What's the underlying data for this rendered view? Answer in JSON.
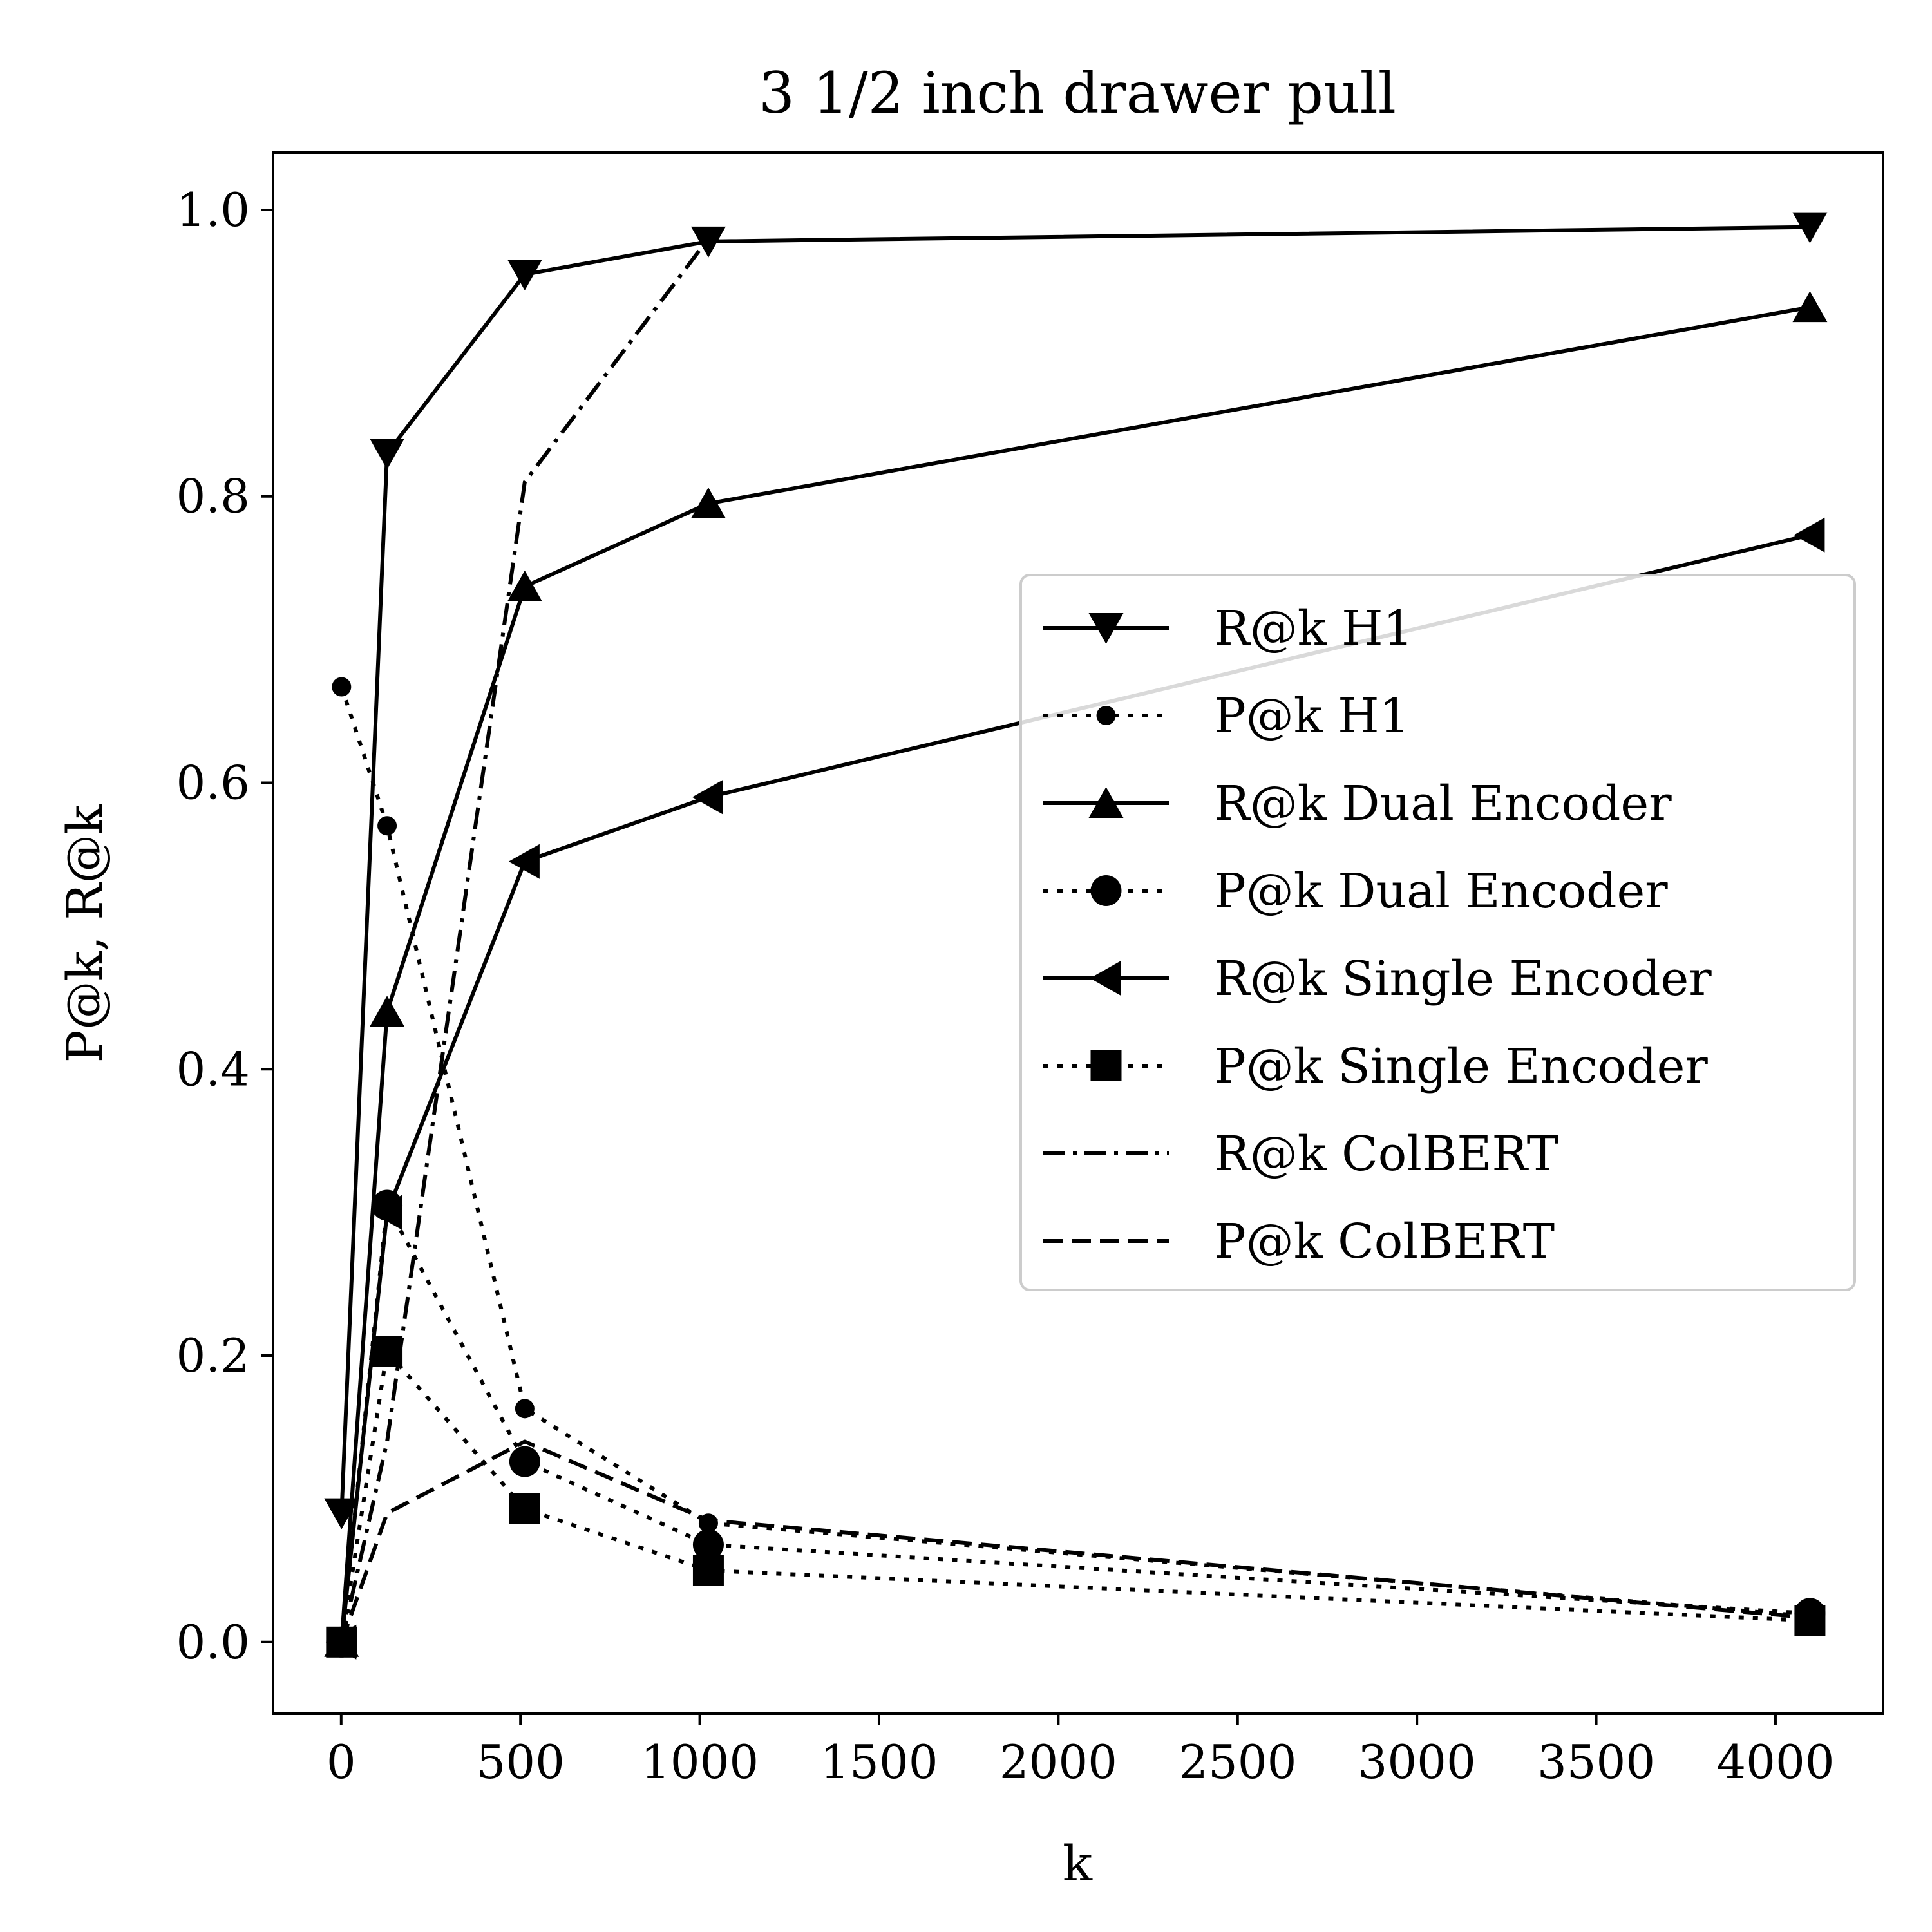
{
  "chart_data": {
    "type": "line",
    "title": "3 1/2 inch drawer pull",
    "xlabel": "k",
    "ylabel": "P@k, R@k",
    "xlim": [
      -190,
      4300
    ],
    "ylim": [
      -0.05,
      1.04
    ],
    "xticks": [
      0,
      500,
      1000,
      1500,
      2000,
      2500,
      3000,
      3500,
      4000
    ],
    "xtick_labels": [
      "0",
      "500",
      "1000",
      "1500",
      "2000",
      "2500",
      "3000",
      "3500",
      "4000"
    ],
    "yticks": [
      0.0,
      0.2,
      0.4,
      0.6,
      0.8,
      1.0
    ],
    "ytick_labels": [
      "0.0",
      "0.2",
      "0.4",
      "0.6",
      "0.8",
      "1.0"
    ],
    "grid": false,
    "legend_position": "center-right",
    "x": [
      1,
      128,
      512,
      1024,
      4096
    ],
    "series": [
      {
        "name": "R@k H1",
        "values": [
          0.09,
          0.83,
          0.955,
          0.978,
          0.988
        ],
        "linestyle": "solid",
        "marker": "triangle-down",
        "color": "#000000"
      },
      {
        "name": "P@k H1",
        "values": [
          0.667,
          0.57,
          0.163,
          0.083,
          0.018
        ],
        "linestyle": "dotted",
        "marker": "small-circle",
        "color": "#000000"
      },
      {
        "name": "R@k Dual Encoder",
        "values": [
          0.0,
          0.44,
          0.737,
          0.795,
          0.932
        ],
        "linestyle": "solid",
        "marker": "triangle-up",
        "color": "#000000"
      },
      {
        "name": "P@k Dual Encoder",
        "values": [
          0.0,
          0.305,
          0.126,
          0.068,
          0.02
        ],
        "linestyle": "dotted",
        "marker": "circle",
        "color": "#000000"
      },
      {
        "name": "R@k Single Encoder",
        "values": [
          0.0,
          0.3,
          0.545,
          0.59,
          0.773
        ],
        "linestyle": "solid",
        "marker": "triangle-left",
        "color": "#000000"
      },
      {
        "name": "P@k Single Encoder",
        "values": [
          0.0,
          0.203,
          0.093,
          0.05,
          0.015
        ],
        "linestyle": "dotted",
        "marker": "square",
        "color": "#000000"
      },
      {
        "name": "R@k ColBERT",
        "values": [
          0.0,
          0.14,
          0.81,
          0.98,
          null
        ],
        "linestyle": "dashdot",
        "marker": "none",
        "color": "#000000"
      },
      {
        "name": "P@k ColBERT",
        "values": [
          0.0,
          0.09,
          0.14,
          0.085,
          0.017
        ],
        "linestyle": "dashed",
        "marker": "none",
        "color": "#000000"
      }
    ]
  }
}
